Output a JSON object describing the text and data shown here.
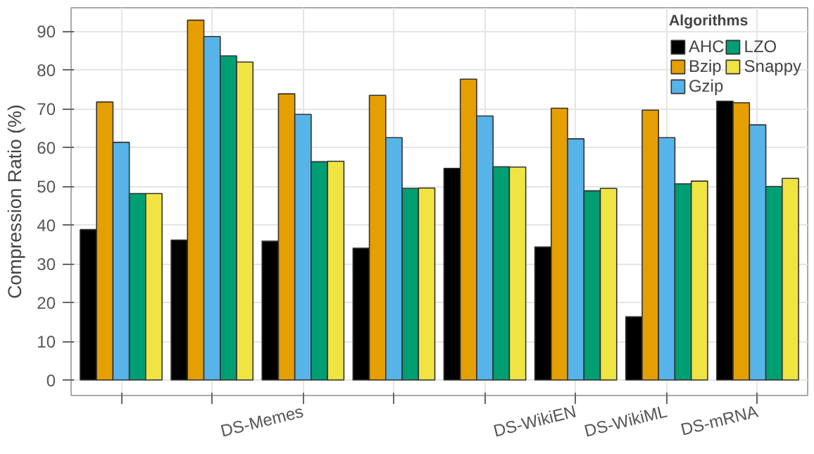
{
  "chart_data": {
    "type": "bar",
    "ylabel": "Compression Ratio (%)",
    "legend_title": "Algorithms",
    "legend": "top right",
    "grid": true,
    "categories": [
      null,
      null,
      "DS-Memes",
      null,
      null,
      "DS-WikiEN",
      "DS-WikiML",
      "DS-mRNA"
    ],
    "ylim": [
      -4,
      96
    ],
    "yticks": [
      0,
      10,
      20,
      30,
      40,
      50,
      60,
      70,
      80,
      90
    ],
    "series": [
      {
        "name": "AHC",
        "color": "#000000",
        "values": [
          38.8,
          36.1,
          35.8,
          34,
          54.6,
          34.3,
          16.3,
          71.9
        ]
      },
      {
        "name": "Bzip",
        "color": "#e69f00",
        "values": [
          71.7,
          92.8,
          73.8,
          73.4,
          77.6,
          70.1,
          69.6,
          71.5
        ]
      },
      {
        "name": "Gzip",
        "color": "#56b4e9",
        "values": [
          61.3,
          88.6,
          68.5,
          62.5,
          68.1,
          62.2,
          62.5,
          65.8
        ]
      },
      {
        "name": "LZO",
        "color": "#009e73",
        "values": [
          48.1,
          83.6,
          56.3,
          49.4,
          55,
          48.8,
          50.6,
          49.9
        ]
      },
      {
        "name": "Snappy",
        "color": "#f0e442",
        "values": [
          48.1,
          82,
          56.4,
          49.5,
          54.9,
          49.4,
          51.3,
          52
        ]
      }
    ]
  }
}
